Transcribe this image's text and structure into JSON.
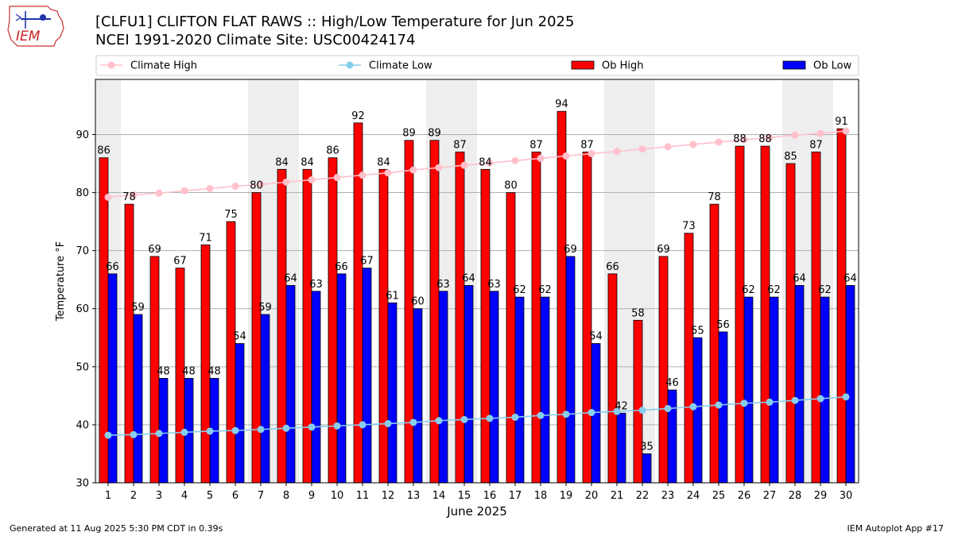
{
  "header": {
    "title_line1": "[CLFU1] CLIFTON FLAT RAWS :: High/Low Temperature for Jun 2025",
    "title_line2": "NCEI 1991-2020 Climate Site: USC00424174",
    "logo_text": "IEM"
  },
  "footer": {
    "generated": "Generated at 11 Aug 2025 5:30 PM CDT in 0.39s",
    "app": "IEM Autoplot App #17"
  },
  "colors": {
    "ob_high": "#ff0000",
    "ob_low": "#0000ff",
    "climate_high": "#ffc0cb",
    "climate_low": "#87ceeb",
    "weekend_band": "#eeeeee",
    "grid": "#b0b0b0"
  },
  "chart_data": {
    "type": "bar",
    "xlabel": "June 2025",
    "ylabel": "Temperature °F",
    "ylim": [
      30,
      99.5
    ],
    "yticks": [
      30,
      40,
      50,
      60,
      70,
      80,
      90
    ],
    "grid": "horizontal",
    "legend_placement": "top",
    "x": [
      1,
      2,
      3,
      4,
      5,
      6,
      7,
      8,
      9,
      10,
      11,
      12,
      13,
      14,
      15,
      16,
      17,
      18,
      19,
      20,
      21,
      22,
      23,
      24,
      25,
      26,
      27,
      28,
      29,
      30
    ],
    "shaded_days": [
      1,
      7,
      8,
      14,
      15,
      21,
      22,
      28,
      29
    ],
    "series": [
      {
        "name": "Ob High",
        "kind": "bar",
        "values": [
          86,
          78,
          69,
          67,
          71,
          75,
          80,
          84,
          84,
          86,
          92,
          84,
          89,
          89,
          87,
          84,
          80,
          87,
          94,
          87,
          66,
          58,
          69,
          73,
          78,
          88,
          88,
          85,
          87,
          91
        ]
      },
      {
        "name": "Ob Low",
        "kind": "bar",
        "values": [
          66,
          59,
          48,
          48,
          48,
          54,
          59,
          64,
          63,
          66,
          67,
          61,
          60,
          63,
          64,
          63,
          62,
          62,
          69,
          54,
          42,
          35,
          46,
          55,
          56,
          62,
          62,
          64,
          62,
          64
        ]
      },
      {
        "name": "Climate High",
        "kind": "line",
        "values": [
          79.2,
          79.6,
          79.9,
          80.3,
          80.7,
          81.1,
          81.4,
          81.8,
          82.2,
          82.6,
          83.0,
          83.4,
          83.9,
          84.3,
          84.7,
          85.1,
          85.5,
          85.9,
          86.3,
          86.7,
          87.1,
          87.5,
          87.9,
          88.3,
          88.7,
          89.1,
          89.5,
          89.9,
          90.2,
          90.6
        ]
      },
      {
        "name": "Climate Low",
        "kind": "line",
        "values": [
          38.2,
          38.3,
          38.5,
          38.7,
          38.9,
          39.0,
          39.2,
          39.4,
          39.6,
          39.8,
          40.0,
          40.2,
          40.4,
          40.7,
          40.9,
          41.1,
          41.3,
          41.6,
          41.8,
          42.1,
          42.3,
          42.5,
          42.8,
          43.1,
          43.4,
          43.7,
          43.9,
          44.2,
          44.5,
          44.8
        ]
      }
    ]
  }
}
